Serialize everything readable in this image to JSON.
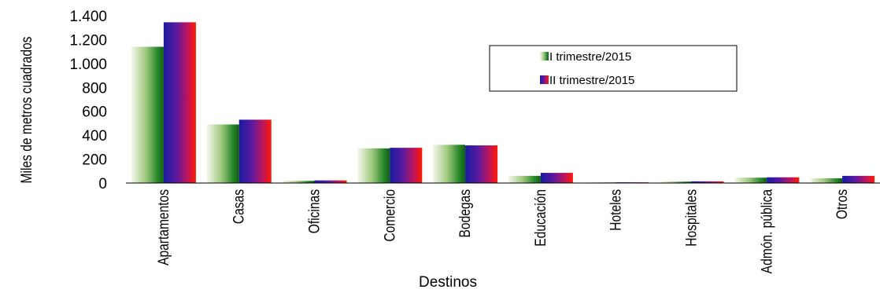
{
  "chart_data": {
    "type": "bar",
    "title": "",
    "xlabel": "Destinos",
    "ylabel": "Miles de metros cuadrados",
    "ylim": [
      0,
      1400
    ],
    "yticks": [
      0,
      200,
      400,
      600,
      800,
      1000,
      1200,
      1400
    ],
    "ytick_labels": [
      "0",
      "200",
      "400",
      "600",
      "800",
      "1.000",
      "1.200",
      "1.400"
    ],
    "categories": [
      "Apartamentos",
      "Casas",
      "Oficinas",
      "Comercio",
      "Bodegas",
      "Educación",
      "Hoteles",
      "Hospitales",
      "Admón. pública",
      "Otros"
    ],
    "series": [
      {
        "name": "I trimestre/2015",
        "values": [
          1140,
          490,
          18,
          290,
          320,
          60,
          5,
          12,
          45,
          40
        ]
      },
      {
        "name": "II trimestre/2015",
        "values": [
          1345,
          530,
          22,
          295,
          315,
          85,
          6,
          14,
          48,
          60
        ]
      }
    ],
    "legend": "top-right",
    "grid": false
  },
  "colors": {
    "series1": [
      "#f4f8ec",
      "#9fc87d",
      "#2b8a2b",
      "#0d5e12"
    ],
    "series2": [
      "#1a1aa0",
      "#5a1aa0",
      "#c0145a",
      "#ff1a00"
    ]
  }
}
